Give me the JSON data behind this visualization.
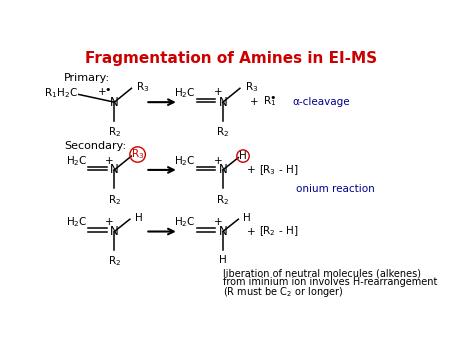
{
  "title": "Fragmentation of Amines in EI-MS",
  "title_color": "#cc0000",
  "title_fontsize": 11,
  "bg_color": "#ffffff",
  "text_color": "#000000",
  "blue_color": "#00008B",
  "red_color": "#cc0000",
  "figsize": [
    4.5,
    3.38
  ],
  "dpi": 100,
  "label_primary": "Primary:",
  "label_secondary": "Secondary:",
  "label_alpha": "α-cleavage",
  "label_onium": "onium reaction",
  "label_lib1": "liberation of neutral molecules (alkenes)",
  "label_lib2": "from iminium ion involves H-rearrangement",
  "label_lib3": "(R must be C"
}
